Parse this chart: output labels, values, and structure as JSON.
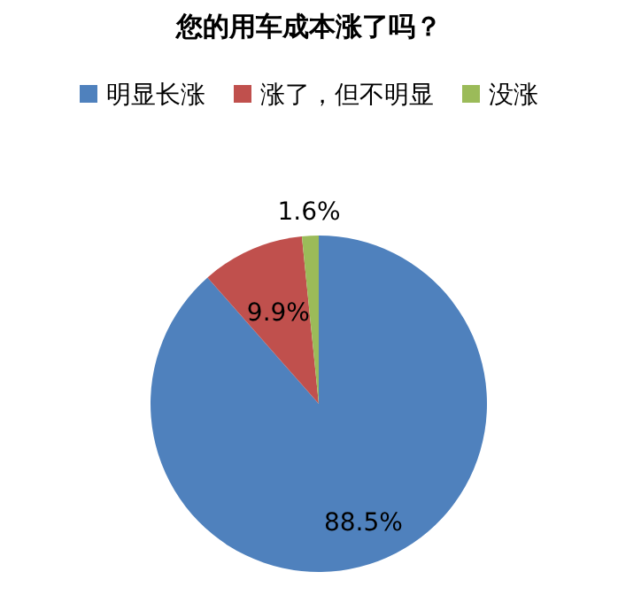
{
  "chart_data": {
    "type": "pie",
    "title": "您的用车成本涨了吗？",
    "categories": [
      "明显长涨",
      "涨了，但不明显",
      "没涨"
    ],
    "values": [
      88.5,
      9.9,
      1.6
    ],
    "colors": [
      "#4f81bd",
      "#c0504d",
      "#9bbb59"
    ],
    "value_labels": [
      "88.5%",
      "9.9%",
      "1.6%"
    ],
    "legend": "top"
  }
}
